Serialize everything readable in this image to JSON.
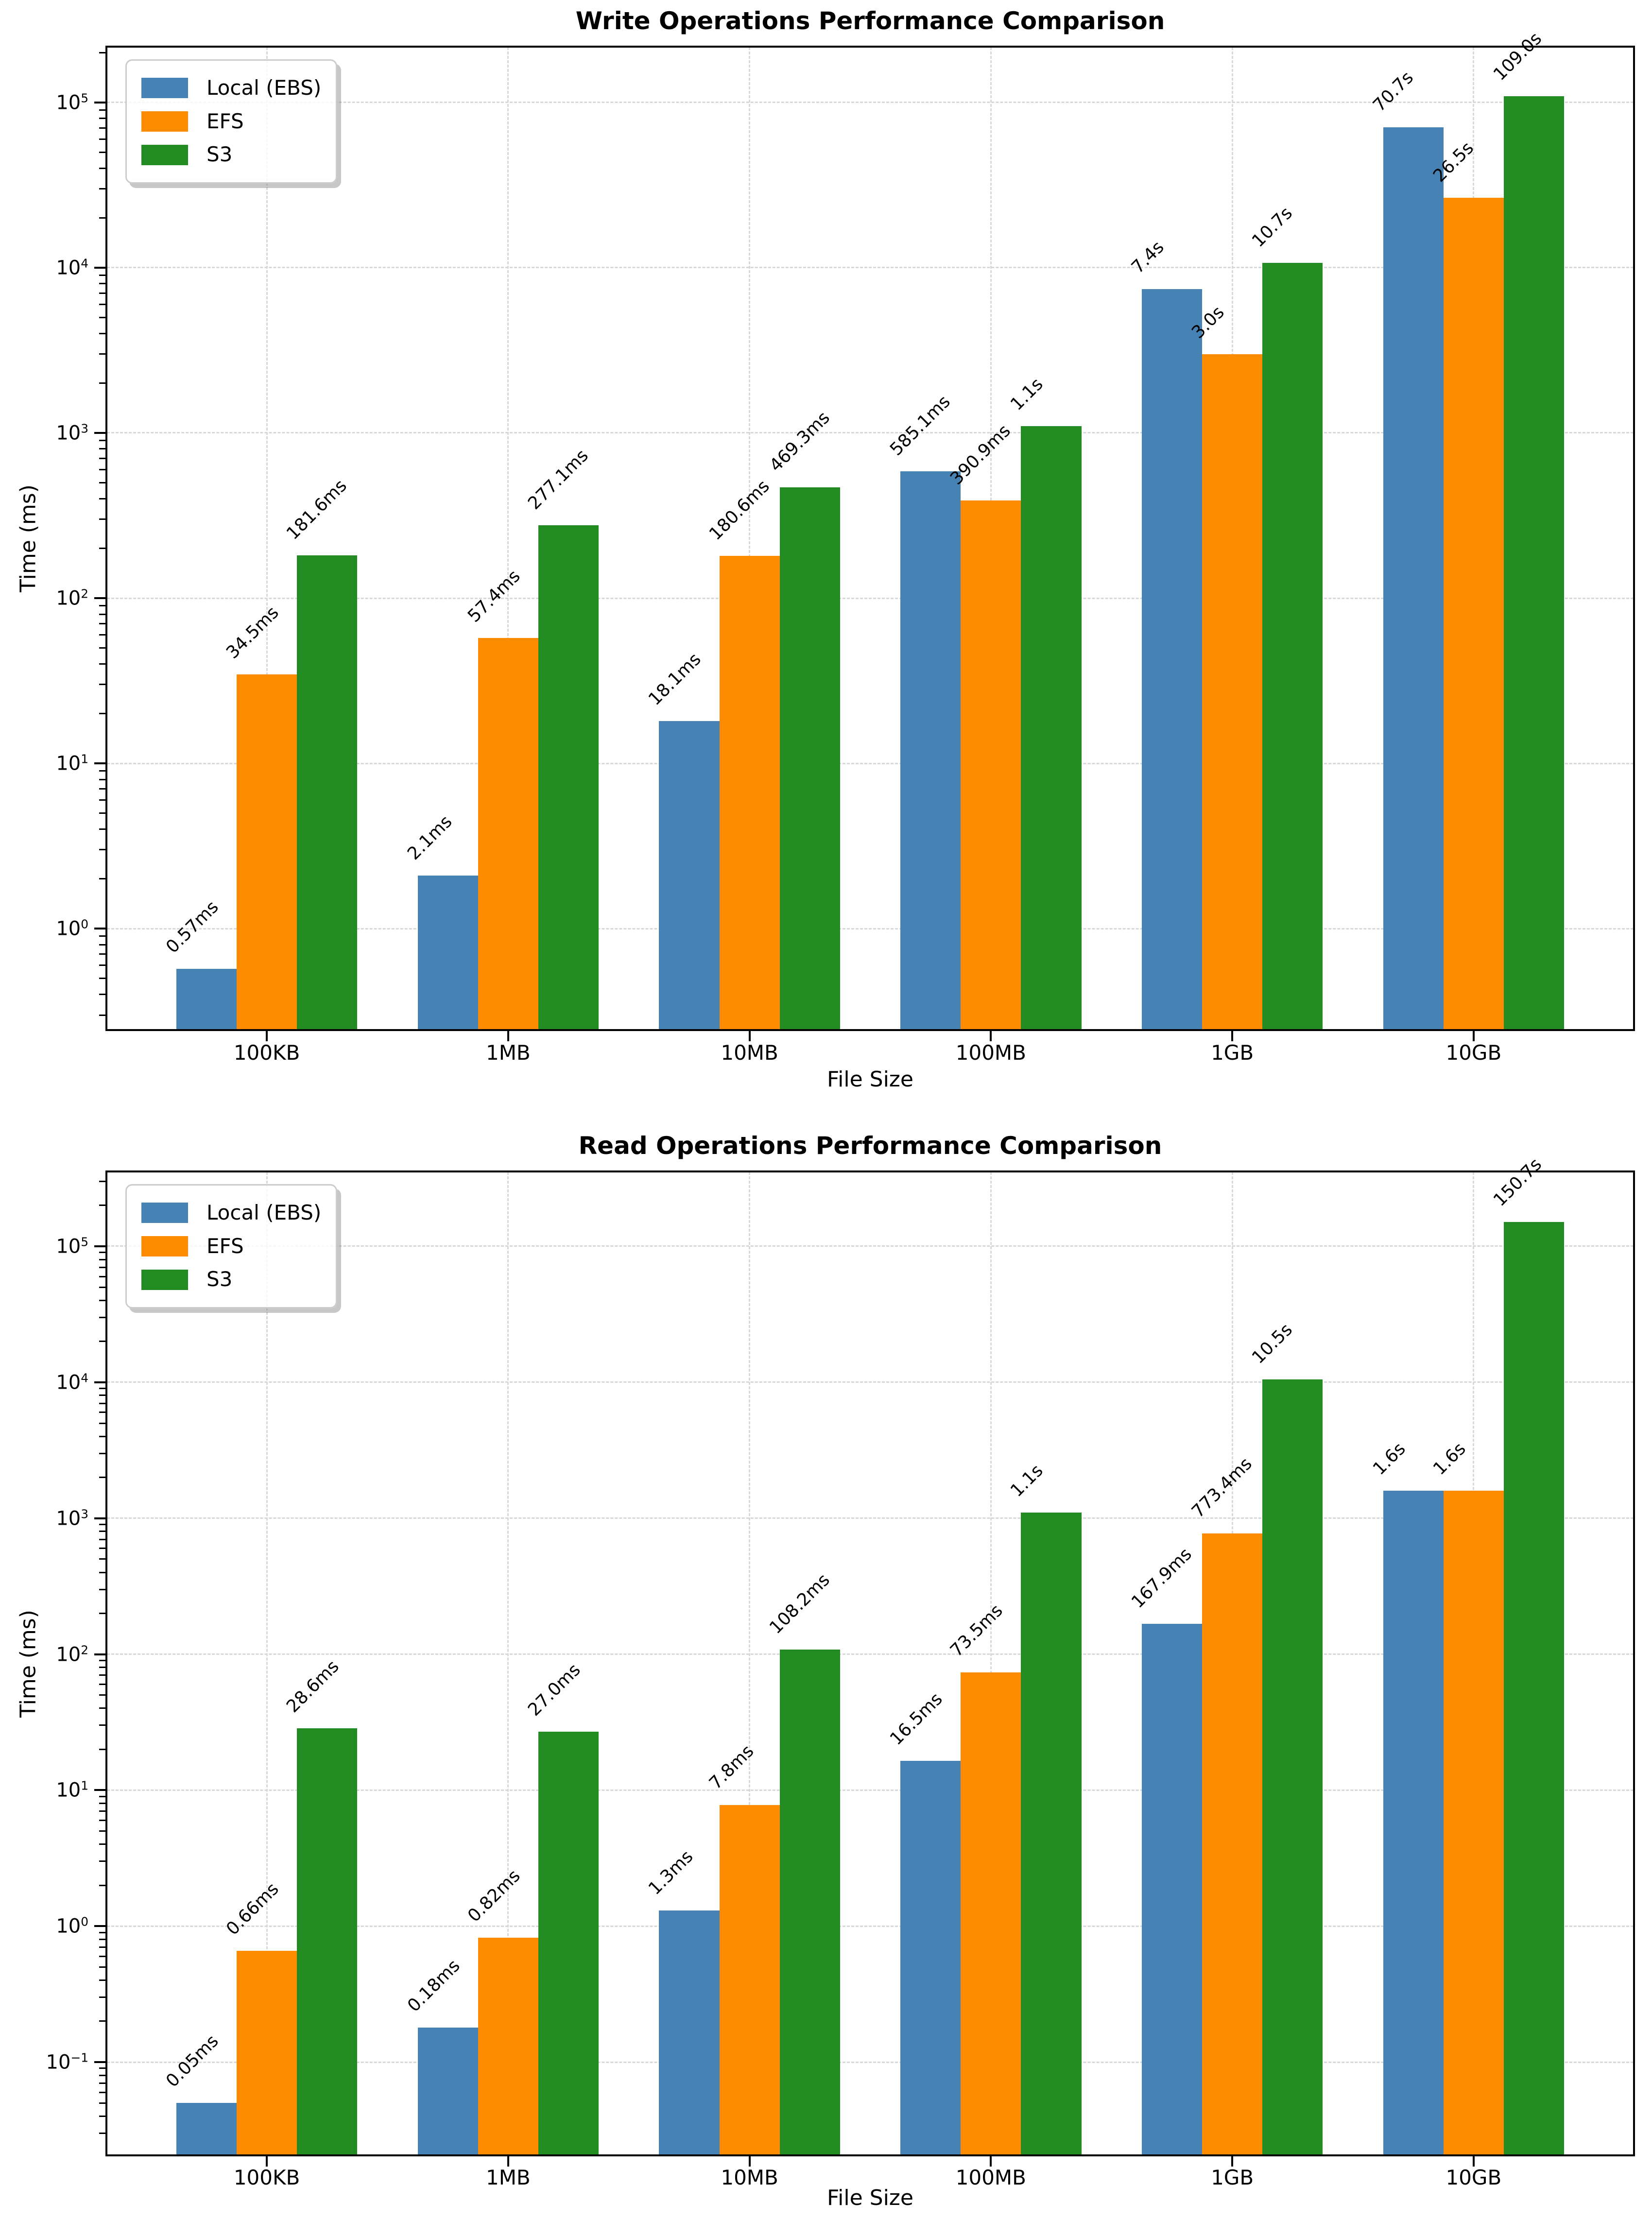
{
  "figure": {
    "background": "#ffffff",
    "text_color": "#000000",
    "grid_color": "#d8d8d8",
    "spine_color": "#000000"
  },
  "chart_data": [
    {
      "type": "bar",
      "title": "Write Operations Performance Comparison",
      "xlabel": "File Size",
      "ylabel": "Time (ms)",
      "yscale": "log",
      "ylim": [
        0.245,
        216000
      ],
      "ytick_exponents": [
        0,
        1,
        2,
        3,
        4,
        5
      ],
      "grid": true,
      "legend_position": "upper left",
      "categories": [
        "100KB",
        "1MB",
        "10MB",
        "100MB",
        "1GB",
        "10GB"
      ],
      "series": [
        {
          "name": "Local (EBS)",
          "color": "#4682b4",
          "values_ms": [
            0.57,
            2.1,
            18.1,
            585.1,
            7400,
            70700
          ],
          "labels": [
            "0.57ms",
            "2.1ms",
            "18.1ms",
            "585.1ms",
            "7.4s",
            "70.7s"
          ]
        },
        {
          "name": "EFS",
          "color": "#ff8c00",
          "values_ms": [
            34.5,
            57.4,
            180.6,
            390.9,
            3000,
            26500
          ],
          "labels": [
            "34.5ms",
            "57.4ms",
            "180.6ms",
            "390.9ms",
            "3.0s",
            "26.5s"
          ]
        },
        {
          "name": "S3",
          "color": "#228b22",
          "values_ms": [
            181.6,
            277.1,
            469.3,
            1100,
            10700,
            109000
          ],
          "labels": [
            "181.6ms",
            "277.1ms",
            "469.3ms",
            "1.1s",
            "10.7s",
            "109.0s"
          ]
        }
      ]
    },
    {
      "type": "bar",
      "title": "Read Operations Performance Comparison",
      "xlabel": "File Size",
      "ylabel": "Time (ms)",
      "yscale": "log",
      "ylim": [
        0.0208,
        352000
      ],
      "ytick_exponents": [
        -1,
        0,
        1,
        2,
        3,
        4,
        5
      ],
      "grid": true,
      "legend_position": "upper left",
      "categories": [
        "100KB",
        "1MB",
        "10MB",
        "100MB",
        "1GB",
        "10GB"
      ],
      "series": [
        {
          "name": "Local (EBS)",
          "color": "#4682b4",
          "values_ms": [
            0.05,
            0.18,
            1.3,
            16.5,
            167.9,
            1600
          ],
          "labels": [
            "0.05ms",
            "0.18ms",
            "1.3ms",
            "16.5ms",
            "167.9ms",
            "1.6s"
          ]
        },
        {
          "name": "EFS",
          "color": "#ff8c00",
          "values_ms": [
            0.66,
            0.82,
            7.8,
            73.5,
            773.4,
            1600
          ],
          "labels": [
            "0.66ms",
            "0.82ms",
            "7.8ms",
            "73.5ms",
            "773.4ms",
            "1.6s"
          ]
        },
        {
          "name": "S3",
          "color": "#228b22",
          "values_ms": [
            28.6,
            27.0,
            108.2,
            1100,
            10500,
            150700
          ],
          "labels": [
            "28.6ms",
            "27.0ms",
            "108.2ms",
            "1.1s",
            "10.5s",
            "150.7s"
          ]
        }
      ]
    }
  ]
}
